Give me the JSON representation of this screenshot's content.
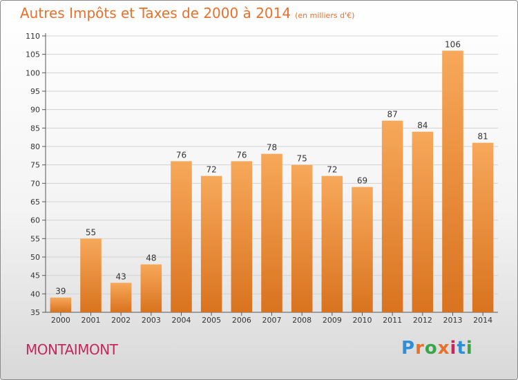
{
  "header": {
    "title": "Autres Impôts et Taxes de 2000 à 2014",
    "unit": "(en milliers d'€)"
  },
  "footer": {
    "commune": "MONTAIMONT",
    "logo_text": "Proxiti",
    "logo_colors": [
      "#2e8fd6",
      "#e8702a",
      "#3aa64a",
      "#e8702a",
      "#c4285a",
      "#2e8fd6",
      "#3aa64a"
    ]
  },
  "chart_data": {
    "type": "bar",
    "title": "Autres Impôts et Taxes de 2000 à 2014",
    "subtitle": "(en milliers d'€)",
    "xlabel": "",
    "ylabel": "",
    "categories": [
      "2000",
      "2001",
      "2002",
      "2003",
      "2004",
      "2005",
      "2006",
      "2007",
      "2008",
      "2009",
      "2010",
      "2011",
      "2012",
      "2013",
      "2014"
    ],
    "values": [
      39,
      55,
      43,
      48,
      76,
      72,
      76,
      78,
      75,
      72,
      69,
      87,
      84,
      106,
      81
    ],
    "ylim": [
      35,
      110
    ],
    "yticks": [
      35,
      40,
      45,
      50,
      55,
      60,
      65,
      70,
      75,
      80,
      85,
      90,
      95,
      100,
      105,
      110
    ],
    "grid": true,
    "bar_color_top": "#f7a85a",
    "bar_color_bottom": "#d9731f"
  }
}
